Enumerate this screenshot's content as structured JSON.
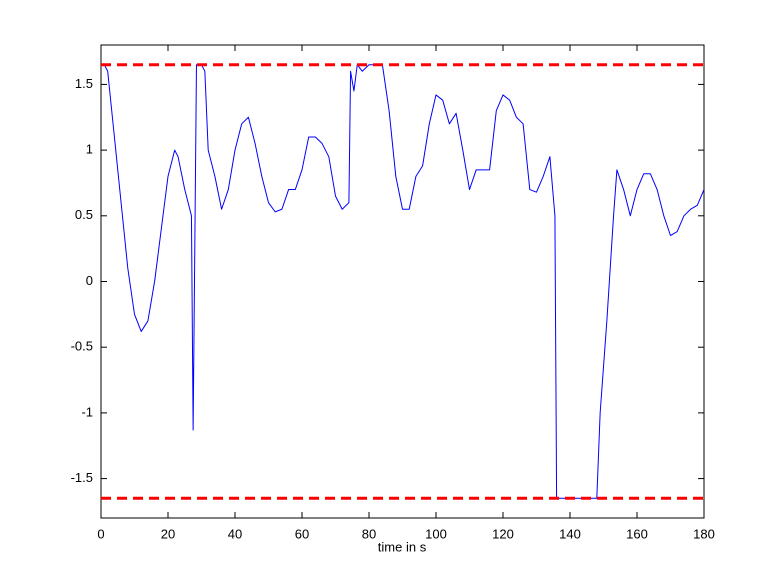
{
  "chart_data": {
    "type": "line",
    "xlabel": "time in s",
    "xlim": [
      0,
      180
    ],
    "xticks": [
      0,
      20,
      40,
      60,
      80,
      100,
      120,
      140,
      160,
      180
    ],
    "ylim": [
      -1.8,
      1.8
    ],
    "yticks": [
      -1.5,
      -1,
      -0.5,
      0,
      0.5,
      1,
      1.5
    ],
    "grid": false,
    "reference_lines": [
      {
        "value": 1.65,
        "color": "#ff0000"
      },
      {
        "value": -1.65,
        "color": "#ff0000"
      }
    ],
    "series": [
      {
        "color": "#0000ff",
        "x": [
          1,
          2,
          4,
          6,
          8,
          10,
          12,
          14,
          16,
          18,
          20,
          22,
          23,
          25,
          27,
          27.5,
          28.5,
          30,
          31,
          32,
          34,
          36,
          38,
          40,
          42,
          44,
          46,
          48,
          50,
          52,
          54,
          56,
          58,
          60,
          62,
          64,
          66,
          68,
          70,
          72,
          74,
          74.5,
          75.5,
          76.5,
          78,
          80,
          84,
          86,
          88,
          90,
          92,
          94,
          96,
          98,
          100,
          102,
          104,
          106,
          108,
          110,
          112,
          114,
          116,
          118,
          120,
          122,
          124,
          126,
          128,
          130,
          132,
          134,
          135.5,
          136,
          140,
          144,
          148,
          149,
          151,
          153,
          154,
          156,
          158,
          160,
          162,
          164,
          166,
          168,
          170,
          172,
          174,
          176,
          178,
          180
        ],
        "values": [
          1.65,
          1.6,
          1.1,
          0.6,
          0.1,
          -0.25,
          -0.38,
          -0.3,
          0.0,
          0.4,
          0.8,
          1.0,
          0.95,
          0.7,
          0.5,
          -1.13,
          1.65,
          1.65,
          1.6,
          1.0,
          0.8,
          0.55,
          0.7,
          1.0,
          1.2,
          1.25,
          1.05,
          0.8,
          0.6,
          0.53,
          0.55,
          0.7,
          0.7,
          0.85,
          1.1,
          1.1,
          1.05,
          0.95,
          0.65,
          0.55,
          0.6,
          1.6,
          1.45,
          1.65,
          1.6,
          1.65,
          1.65,
          1.3,
          0.8,
          0.55,
          0.55,
          0.8,
          0.88,
          1.2,
          1.42,
          1.38,
          1.2,
          1.28,
          1.0,
          0.7,
          0.85,
          0.85,
          0.85,
          1.3,
          1.42,
          1.38,
          1.25,
          1.2,
          0.7,
          0.68,
          0.8,
          0.95,
          0.5,
          -1.65,
          -1.65,
          -1.65,
          -1.65,
          -1.0,
          -0.3,
          0.5,
          0.85,
          0.7,
          0.5,
          0.7,
          0.82,
          0.82,
          0.7,
          0.5,
          0.35,
          0.38,
          0.5,
          0.55,
          0.58,
          0.7
        ]
      }
    ]
  }
}
